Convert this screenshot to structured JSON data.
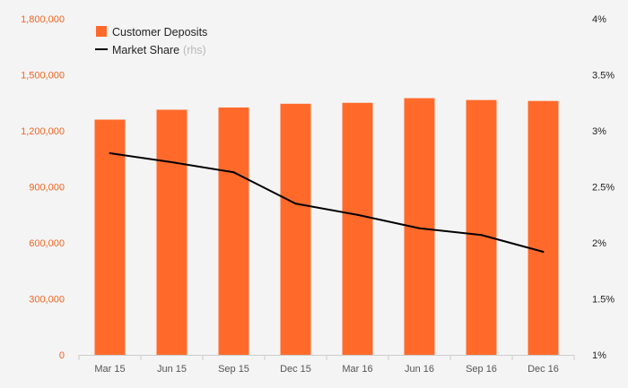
{
  "chart_data": {
    "type": "bar",
    "categories": [
      "Mar 15",
      "Jun 15",
      "Sep 15",
      "Dec 15",
      "Mar 16",
      "Jun 16",
      "Sep 16",
      "Dec 16"
    ],
    "series": [
      {
        "name": "Customer Deposits",
        "type": "bar",
        "axis": "left",
        "color": "#ff6a2b",
        "values": [
          1260000,
          1313000,
          1325000,
          1345000,
          1350000,
          1375000,
          1365000,
          1360000
        ]
      },
      {
        "name": "Market Share",
        "legend_suffix": "(rhs)",
        "type": "line",
        "axis": "right",
        "color": "#000000",
        "values": [
          2.8,
          2.72,
          2.63,
          2.35,
          2.25,
          2.13,
          2.07,
          1.92
        ]
      }
    ],
    "y_left": {
      "ticks": [
        0,
        300000,
        600000,
        900000,
        1200000,
        1500000,
        1800000
      ],
      "tick_labels": [
        "0",
        "300,000",
        "600,000",
        "900,000",
        "1,200,000",
        "1,500,000",
        "1,800,000"
      ],
      "ylim": [
        0,
        1800000
      ],
      "color": "#f26522"
    },
    "y_right": {
      "ticks": [
        1,
        1.5,
        2,
        2.5,
        3,
        3.5,
        4
      ],
      "tick_labels": [
        "1%",
        "1.5%",
        "2%",
        "2.5%",
        "3%",
        "3.5%",
        "4%"
      ],
      "ylim": [
        1,
        4
      ]
    },
    "legend_position": "top-left",
    "grid": false
  }
}
